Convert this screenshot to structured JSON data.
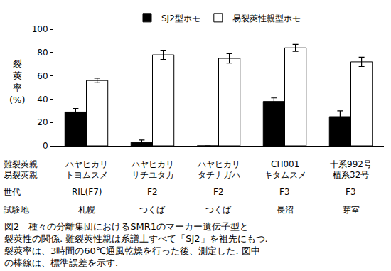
{
  "chart_data": {
    "type": "bar",
    "categories": [
      [
        "ハヤヒカリ",
        "トヨムスメ",
        "RIL(F7)",
        "札幌"
      ],
      [
        "ハヤヒカリ",
        "サチユタカ",
        "F2",
        "つくば"
      ],
      [
        "ハヤヒカリ",
        "タチナガハ",
        "F2",
        "つくば"
      ],
      [
        "CH001",
        "キタムスメ",
        "F3",
        "長沼"
      ],
      [
        "十系992号",
        "植系32号",
        "F3",
        "芽室"
      ]
    ],
    "row_labels": [
      "難裂莢親",
      "易裂莢親",
      "世代",
      "試験地"
    ],
    "series": [
      {
        "name": "SJ2型ホモ",
        "color": "#000000",
        "values": [
          29,
          3,
          0,
          38,
          25
        ],
        "errors": [
          3,
          2,
          0,
          3,
          5
        ]
      },
      {
        "name": "易裂莢性親型ホモ",
        "color": "#ffffff",
        "values": [
          56,
          78,
          75,
          84,
          72
        ],
        "errors": [
          2,
          4,
          4,
          3,
          4
        ]
      }
    ],
    "y_label": [
      "裂",
      "莢",
      "率",
      "(%)"
    ],
    "ylim": [
      0,
      100
    ],
    "yticks": [
      0,
      20,
      40,
      60,
      80,
      100
    ],
    "grid": false,
    "legend": "top",
    "caption": [
      "図2　種々の分離集団におけるSMR1のマーカー遺伝子型と",
      "裂莢性の関係. 難裂莢性親は系譜上すべて「SJ2」を祖先にもつ.",
      "裂莢率は、3時間の60℃通風乾燥を行った後、測定した. 図中",
      "の棒線は、標準誤差を示す."
    ]
  }
}
